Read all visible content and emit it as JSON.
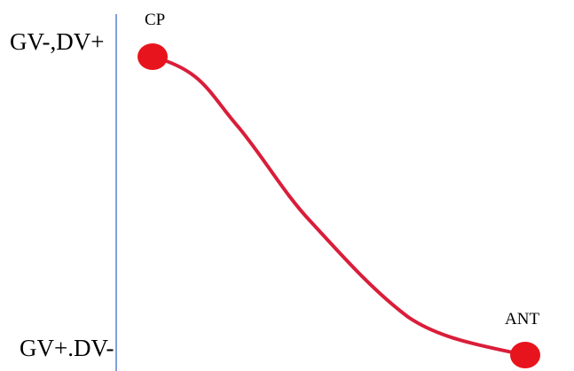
{
  "axis": {
    "top_label": "GV-,DV+",
    "bottom_label": "GV+.DV-"
  },
  "points": {
    "start_label": "CP",
    "end_label": "ANT"
  },
  "colors": {
    "axis_line": "#5b7fd1",
    "curve": "#d91e3a",
    "point": "#e8141d",
    "text": "#000000"
  }
}
